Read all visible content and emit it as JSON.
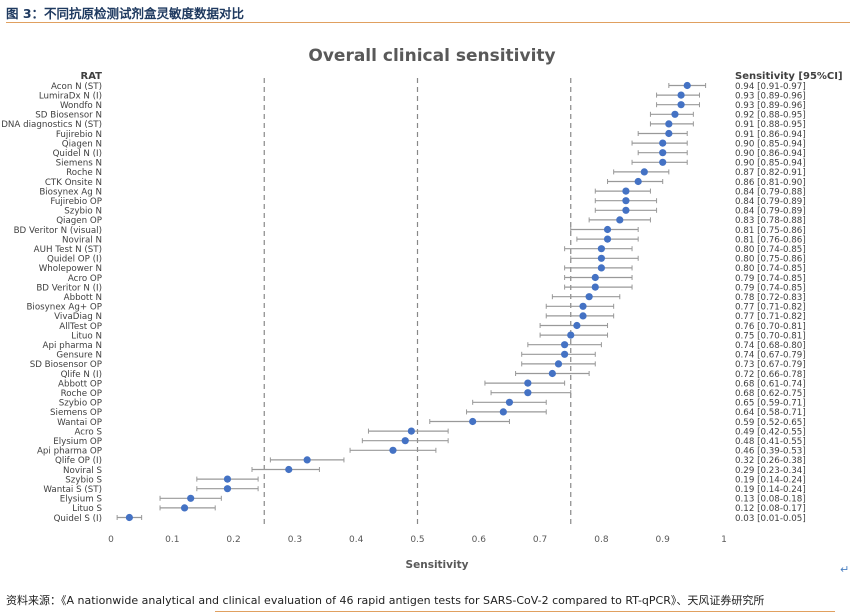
{
  "figure_title": "图 3：不同抗原检测试剂盒灵敏度数据对比",
  "source_text": "资料来源：《A nationwide analytical and clinical evaluation of 46 rapid antigen tests for SARS-CoV-2 compared to RT-qPCR》、天风证券研究所",
  "return_mark": "↵",
  "colors": {
    "point": "#4472c4",
    "ci": "#999999",
    "ref_line": "#888888",
    "rule": "#e0a060",
    "title_text": "#1f3a60"
  },
  "chart_data": {
    "type": "scatter",
    "title": "Overall clinical sensitivity",
    "xlabel": "Sensitivity",
    "row_header": "RAT",
    "value_header": "Sensitivity [95%CI]",
    "xlim": [
      0,
      1
    ],
    "x_ticks": [
      "0",
      "0.1",
      "0.2",
      "0.3",
      "0.4",
      "0.5",
      "0.6",
      "0.7",
      "0.8",
      "0.9",
      "1"
    ],
    "reference_lines": [
      0.25,
      0.5,
      0.75
    ],
    "grid": false,
    "rows": [
      {
        "name": "Acon N (ST)",
        "value": 0.94,
        "low": 0.91,
        "high": 0.97,
        "label": "0.94 [0.91-0.97]"
      },
      {
        "name": "LumiraDx N (I)",
        "value": 0.93,
        "low": 0.89,
        "high": 0.96,
        "label": "0.93 [0.89-0.96]"
      },
      {
        "name": "Wondfo N",
        "value": 0.93,
        "low": 0.89,
        "high": 0.96,
        "label": "0.93 [0.89-0.96]"
      },
      {
        "name": "SD Biosensor N",
        "value": 0.92,
        "low": 0.88,
        "high": 0.95,
        "label": "0.92 [0.88-0.95]"
      },
      {
        "name": "DNA diagnostics N (ST)",
        "value": 0.91,
        "low": 0.88,
        "high": 0.95,
        "label": "0.91 [0.88-0.95]"
      },
      {
        "name": "Fujirebio N",
        "value": 0.91,
        "low": 0.86,
        "high": 0.94,
        "label": "0.91 [0.86-0.94]"
      },
      {
        "name": "Qiagen N",
        "value": 0.9,
        "low": 0.85,
        "high": 0.94,
        "label": "0.90 [0.85-0.94]"
      },
      {
        "name": "Quidel N (I)",
        "value": 0.9,
        "low": 0.86,
        "high": 0.94,
        "label": "0.90 [0.86-0.94]"
      },
      {
        "name": "Siemens N",
        "value": 0.9,
        "low": 0.85,
        "high": 0.94,
        "label": "0.90 [0.85-0.94]"
      },
      {
        "name": "Roche N",
        "value": 0.87,
        "low": 0.82,
        "high": 0.91,
        "label": "0.87 [0.82-0.91]"
      },
      {
        "name": "CTK Onsite N",
        "value": 0.86,
        "low": 0.81,
        "high": 0.9,
        "label": "0.86 [0.81-0.90]"
      },
      {
        "name": "Biosynex Ag N",
        "value": 0.84,
        "low": 0.79,
        "high": 0.88,
        "label": "0.84 [0.79-0.88]"
      },
      {
        "name": "Fujirebio OP",
        "value": 0.84,
        "low": 0.79,
        "high": 0.89,
        "label": "0.84 [0.79-0.89]"
      },
      {
        "name": "Szybio N",
        "value": 0.84,
        "low": 0.79,
        "high": 0.89,
        "label": "0.84 [0.79-0.89]"
      },
      {
        "name": "Qiagen OP",
        "value": 0.83,
        "low": 0.78,
        "high": 0.88,
        "label": "0.83 [0.78-0.88]"
      },
      {
        "name": "BD Veritor N (visual)",
        "value": 0.81,
        "low": 0.75,
        "high": 0.86,
        "label": "0.81 [0.75-0.86]"
      },
      {
        "name": "Noviral N",
        "value": 0.81,
        "low": 0.76,
        "high": 0.86,
        "label": "0.81 [0.76-0.86]"
      },
      {
        "name": "AUH Test N (ST)",
        "value": 0.8,
        "low": 0.74,
        "high": 0.85,
        "label": "0.80 [0.74-0.85]"
      },
      {
        "name": "Quidel OP (I)",
        "value": 0.8,
        "low": 0.75,
        "high": 0.86,
        "label": "0.80 [0.75-0.86]"
      },
      {
        "name": "Wholepower N",
        "value": 0.8,
        "low": 0.74,
        "high": 0.85,
        "label": "0.80 [0.74-0.85]"
      },
      {
        "name": "Acro OP",
        "value": 0.79,
        "low": 0.74,
        "high": 0.85,
        "label": "0.79 [0.74-0.85]"
      },
      {
        "name": "BD Veritor N (I)",
        "value": 0.79,
        "low": 0.74,
        "high": 0.85,
        "label": "0.79 [0.74-0.85]"
      },
      {
        "name": "Abbott N",
        "value": 0.78,
        "low": 0.72,
        "high": 0.83,
        "label": "0.78 [0.72-0.83]"
      },
      {
        "name": "Biosynex Ag+ OP",
        "value": 0.77,
        "low": 0.71,
        "high": 0.82,
        "label": "0.77 [0.71-0.82]"
      },
      {
        "name": "VivaDiag N",
        "value": 0.77,
        "low": 0.71,
        "high": 0.82,
        "label": "0.77 [0.71-0.82]"
      },
      {
        "name": "AllTest OP",
        "value": 0.76,
        "low": 0.7,
        "high": 0.81,
        "label": "0.76 [0.70-0.81]"
      },
      {
        "name": "Lituo N",
        "value": 0.75,
        "low": 0.7,
        "high": 0.81,
        "label": "0.75 [0.70-0.81]"
      },
      {
        "name": "Api pharma N",
        "value": 0.74,
        "low": 0.68,
        "high": 0.8,
        "label": "0.74 [0.68-0.80]"
      },
      {
        "name": "Gensure N",
        "value": 0.74,
        "low": 0.67,
        "high": 0.79,
        "label": "0.74 [0.67-0.79]"
      },
      {
        "name": "SD Biosensor OP",
        "value": 0.73,
        "low": 0.67,
        "high": 0.79,
        "label": "0.73 [0.67-0.79]"
      },
      {
        "name": "Qlife N (I)",
        "value": 0.72,
        "low": 0.66,
        "high": 0.78,
        "label": "0.72 [0.66-0.78]"
      },
      {
        "name": "Abbott OP",
        "value": 0.68,
        "low": 0.61,
        "high": 0.74,
        "label": "0.68 [0.61-0.74]"
      },
      {
        "name": "Roche OP",
        "value": 0.68,
        "low": 0.62,
        "high": 0.75,
        "label": "0.68 [0.62-0.75]"
      },
      {
        "name": "Szybio OP",
        "value": 0.65,
        "low": 0.59,
        "high": 0.71,
        "label": "0.65 [0.59-0.71]"
      },
      {
        "name": "Siemens OP",
        "value": 0.64,
        "low": 0.58,
        "high": 0.71,
        "label": "0.64 [0.58-0.71]"
      },
      {
        "name": "Wantai OP",
        "value": 0.59,
        "low": 0.52,
        "high": 0.65,
        "label": "0.59 [0.52-0.65]"
      },
      {
        "name": "Acro S",
        "value": 0.49,
        "low": 0.42,
        "high": 0.55,
        "label": "0.49 [0.42-0.55]"
      },
      {
        "name": "Elysium OP",
        "value": 0.48,
        "low": 0.41,
        "high": 0.55,
        "label": "0.48 [0.41-0.55]"
      },
      {
        "name": "Api pharma OP",
        "value": 0.46,
        "low": 0.39,
        "high": 0.53,
        "label": "0.46 [0.39-0.53]"
      },
      {
        "name": "Qlife OP (I)",
        "value": 0.32,
        "low": 0.26,
        "high": 0.38,
        "label": "0.32 [0.26-0.38]"
      },
      {
        "name": "Noviral S",
        "value": 0.29,
        "low": 0.23,
        "high": 0.34,
        "label": "0.29 [0.23-0.34]"
      },
      {
        "name": "Szybio S",
        "value": 0.19,
        "low": 0.14,
        "high": 0.24,
        "label": "0.19 [0.14-0.24]"
      },
      {
        "name": "Wantai S (ST)",
        "value": 0.19,
        "low": 0.14,
        "high": 0.24,
        "label": "0.19 [0.14-0.24]"
      },
      {
        "name": "Elysium S",
        "value": 0.13,
        "low": 0.08,
        "high": 0.18,
        "label": "0.13 [0.08-0.18]"
      },
      {
        "name": "Lituo S",
        "value": 0.12,
        "low": 0.08,
        "high": 0.17,
        "label": "0.12 [0.08-0.17]"
      },
      {
        "name": "Quidel S (I)",
        "value": 0.03,
        "low": 0.01,
        "high": 0.05,
        "label": "0.03 [0.01-0.05]"
      }
    ]
  }
}
